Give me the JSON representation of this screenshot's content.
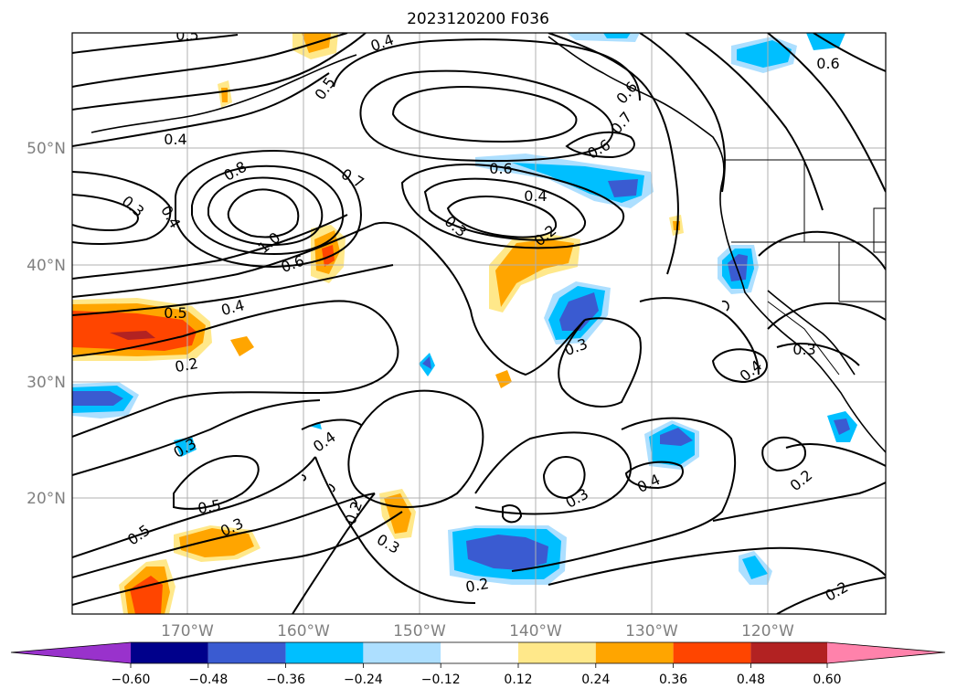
{
  "title": "2023120200 F036",
  "map": {
    "lat_labels": [
      "50°N",
      "40°N",
      "30°N",
      "20°N"
    ],
    "lon_labels": [
      "170°W",
      "160°W",
      "150°W",
      "140°W",
      "130°W",
      "120°W"
    ],
    "contour_labels": [
      "0.5",
      "0.4",
      "0.5",
      "0.4",
      "0.3",
      "0.4",
      "0.8",
      "0.7",
      "0.6",
      "1.0",
      "0.6",
      "0.5",
      "0.4",
      "0.2",
      "0.6",
      "0.4",
      "0.3",
      "0.2",
      "0.6",
      "0.7",
      "0.3",
      "0.4",
      "0.3",
      "0.4",
      "0.5",
      "0.5",
      "0.3",
      "0.2",
      "0.3",
      "0.2",
      "0.3",
      "0.4",
      "0.2",
      "0.2",
      "0.6",
      "0.3"
    ]
  },
  "colorbar": {
    "tick_labels": [
      "−0.60",
      "−0.48",
      "−0.36",
      "−0.24",
      "−0.12",
      "0.12",
      "0.24",
      "0.36",
      "0.48",
      "0.60"
    ],
    "colors": [
      "#9932cc",
      "#00008b",
      "#3a5bd1",
      "#00bfff",
      "#addfff",
      "#ffffff",
      "#ffe88a",
      "#ffa500",
      "#ff4500",
      "#b22222",
      "#ff82ab"
    ]
  }
}
